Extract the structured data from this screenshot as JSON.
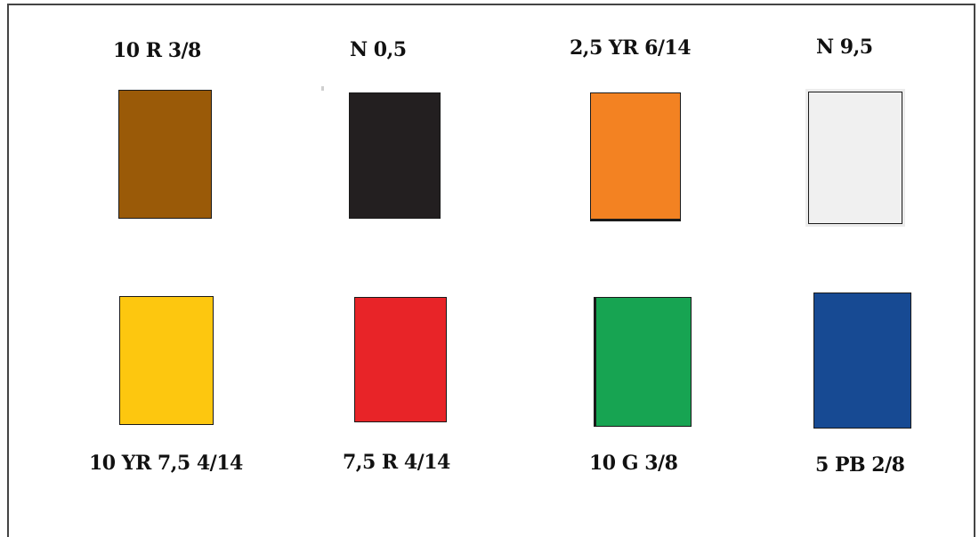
{
  "swatches": [
    {
      "label": "10 R 3/8",
      "color": "#9a5a08"
    },
    {
      "label": "N 0,5",
      "color": "#231f20"
    },
    {
      "label": "2,5 YR 6/14",
      "color": "#f38222"
    },
    {
      "label": "N 9,5",
      "color": "#f0f0f0"
    },
    {
      "label": "10 YR 7,5 4/14",
      "color": "#fdc70f"
    },
    {
      "label": "7,5 R 4/14",
      "color": "#e82428"
    },
    {
      "label": "10 G 3/8",
      "color": "#17a452"
    },
    {
      "label": "5 PB 2/8",
      "color": "#174a93"
    }
  ]
}
